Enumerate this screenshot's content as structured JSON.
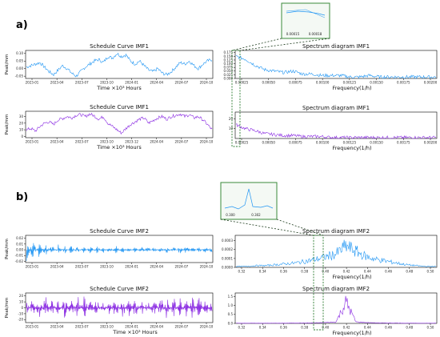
{
  "panels": [
    {
      "label": "a)",
      "inset_ticks": [
        "0.00015",
        "0.00018"
      ],
      "charts": [
        {
          "id": "a1",
          "type": "line",
          "title": "Schedule Curve  IMF1",
          "ylabel": "Peak/mm",
          "xlabel": "Time ×10³ Hours",
          "color": "#2196f3",
          "xticks": [
            "2023-01",
            "2023-04",
            "2023-07",
            "2023-10",
            "2024-01",
            "2024-04",
            "2024-07",
            "2024-10"
          ],
          "yticks": [
            {
              "v": 0.1,
              "t": "0.10"
            },
            {
              "v": 0.05,
              "t": "0.05"
            },
            {
              "v": 0.0,
              "t": "0.00"
            },
            {
              "v": -0.05,
              "t": "-0.05"
            }
          ],
          "ylim": [
            -0.065,
            0.12
          ]
        },
        {
          "id": "a2",
          "type": "line",
          "title": "Schedule Curve  IMF1",
          "ylabel": "Peak/mm",
          "xlabel": "Time ×10³ Hours",
          "color": "#8a2be2",
          "xticks": [
            "2023-01",
            "2023-04",
            "2023-07",
            "2023-10",
            "2023-12",
            "2024-04",
            "2024-07",
            "2024-10"
          ],
          "yticks": [
            {
              "v": 30,
              "t": "30"
            },
            {
              "v": 20,
              "t": "20"
            },
            {
              "v": 10,
              "t": "10"
            },
            {
              "v": 0,
              "t": "0"
            }
          ],
          "ylim": [
            -2,
            38
          ]
        },
        {
          "id": "a3",
          "type": "line",
          "title": "Spectrum diagram  IMF1",
          "ylabel": "",
          "xlabel": "Frequency(1/h)",
          "color": "#2196f3",
          "xticks": [
            "0.00025",
            "0.00050",
            "0.00075",
            "0.00100",
            "0.00125",
            "0.00150",
            "0.00175",
            "0.00200"
          ],
          "yticks": [
            {
              "v": 0.175,
              "t": "0.175"
            },
            {
              "v": 0.15,
              "t": "0.150"
            },
            {
              "v": 0.125,
              "t": "0.125"
            },
            {
              "v": 0.1,
              "t": "0.100"
            },
            {
              "v": 0.075,
              "t": "0.075"
            },
            {
              "v": 0.05,
              "t": "0.050"
            },
            {
              "v": 0.025,
              "t": "0.025"
            },
            {
              "v": 0.0,
              "t": "0.000"
            }
          ],
          "ylim": [
            0,
            0.19
          ]
        },
        {
          "id": "a4",
          "type": "line",
          "title": "Spectrum diagram  IMF1",
          "ylabel": "",
          "xlabel": "Frequency(1/h)",
          "color": "#8a2be2",
          "xticks": [
            "0.00025",
            "0.00050",
            "0.00075",
            "0.00100",
            "0.00125",
            "0.00150",
            "0.00175",
            "0.00200"
          ],
          "yticks": [
            {
              "v": 20,
              "t": "20"
            },
            {
              "v": 10,
              "t": "10"
            }
          ],
          "ylim": [
            0,
            27
          ]
        }
      ]
    },
    {
      "label": "b)",
      "inset_ticks": [
        "0.300",
        "0.302"
      ],
      "charts": [
        {
          "id": "b1",
          "type": "line",
          "title": "Schedule Curve  IMF2",
          "ylabel": "Peak/mm",
          "xlabel": "",
          "color": "#2196f3",
          "xticks": [
            "2023-01",
            "2023-04",
            "2023-07",
            "2023-10",
            "2024-01",
            "2024-04",
            "2024-07",
            "2024-10"
          ],
          "yticks": [
            {
              "v": 0.02,
              "t": "0.02"
            },
            {
              "v": 0.01,
              "t": "0.01"
            },
            {
              "v": 0.0,
              "t": "0.00"
            },
            {
              "v": -0.01,
              "t": "-0.01"
            },
            {
              "v": -0.02,
              "t": "-0.02"
            }
          ],
          "ylim": [
            -0.022,
            0.025
          ]
        },
        {
          "id": "b2",
          "type": "line",
          "title": "Schedule Curve  IMF2",
          "ylabel": "Peak/mm",
          "xlabel": "Time ×10³ Hours",
          "color": "#8a2be2",
          "xticks": [
            "2023-01",
            "2023-04",
            "2023-07",
            "2023-10",
            "2024-01",
            "2024-04",
            "2024-07",
            "2024-10"
          ],
          "yticks": [
            {
              "v": 20,
              "t": "20"
            },
            {
              "v": 10,
              "t": "10"
            },
            {
              "v": 0,
              "t": "0"
            },
            {
              "v": -10,
              "t": "-10"
            },
            {
              "v": -20,
              "t": "-20"
            }
          ],
          "ylim": [
            -25,
            25
          ]
        },
        {
          "id": "b3",
          "type": "line",
          "title": "Spectrum diagram  IMF2",
          "ylabel": "",
          "xlabel": "Frequency(1/h)",
          "color": "#2196f3",
          "xticks": [
            "0.32",
            "0.34",
            "0.36",
            "0.38",
            "0.40",
            "0.42",
            "0.44",
            "0.46",
            "0.48",
            "0.50"
          ],
          "yticks": [
            {
              "v": 0.0003,
              "t": "0.0003"
            },
            {
              "v": 0.0002,
              "t": "0.0002"
            },
            {
              "v": 0.0001,
              "t": "0.0001"
            },
            {
              "v": 0,
              "t": "0.0000"
            }
          ],
          "ylim": [
            0,
            0.00036
          ]
        },
        {
          "id": "b4",
          "type": "line",
          "title": "Spectrum diagram  IMF2",
          "ylabel": "",
          "xlabel": "Frequency(1/h)",
          "color": "#8a2be2",
          "xticks": [
            "0.32",
            "0.34",
            "0.36",
            "0.38",
            "0.40",
            "0.42",
            "0.44",
            "0.46",
            "0.48",
            "0.50"
          ],
          "yticks": [
            {
              "v": 1.5,
              "t": "1.5"
            },
            {
              "v": 1.0,
              "t": "1.0"
            },
            {
              "v": 0.5,
              "t": "0.5"
            },
            {
              "v": 0.0,
              "t": "0.0"
            }
          ],
          "ylim": [
            0,
            1.7
          ]
        }
      ]
    }
  ],
  "chart_data": [
    {
      "type": "line",
      "title": "Schedule Curve  IMF1",
      "series": [
        {
          "values": [
            0.01,
            0.02,
            0.03,
            0.04,
            0.01,
            -0.02,
            -0.04,
            -0.01,
            0.02,
            0.0,
            -0.03,
            -0.05,
            -0.02,
            0.01,
            0.03,
            0.05,
            0.06,
            0.04,
            0.08,
            0.07,
            0.1,
            0.08,
            0.09,
            0.05,
            0.03,
            0.05,
            0.02,
            -0.01,
            -0.02,
            0.0,
            -0.03,
            -0.04,
            -0.02,
            0.01,
            0.04,
            0.03,
            0.05,
            0.02,
            0.0,
            0.03,
            0.05,
            0.06
          ]
        }
      ]
    },
    {
      "type": "line",
      "title": "Schedule Curve  IMF1",
      "series": [
        {
          "values": [
            10,
            12,
            8,
            15,
            20,
            22,
            18,
            25,
            27,
            30,
            28,
            32,
            33,
            30,
            34,
            31,
            26,
            30,
            20,
            15,
            10,
            5,
            12,
            18,
            22,
            26,
            28,
            20,
            24,
            28,
            30,
            26,
            30,
            32,
            34,
            30,
            33,
            28,
            30,
            25,
            18,
            10
          ]
        }
      ]
    },
    {
      "type": "line",
      "title": "Spectrum diagram  IMF1",
      "series": [
        {
          "values": [
            0.15,
            0.13,
            0.09,
            0.06,
            0.05,
            0.04,
            0.05,
            0.03,
            0.03,
            0.02,
            0.02,
            0.02,
            0.01,
            0.01,
            0.02,
            0.01,
            0.01,
            0.01,
            0.01,
            0.01,
            0.01,
            0.01
          ]
        }
      ]
    },
    {
      "type": "line",
      "title": "Spectrum diagram  IMF1",
      "series": [
        {
          "values": [
            14,
            10,
            8,
            5,
            4,
            3,
            3,
            2,
            2,
            2,
            1,
            1,
            1,
            1,
            1,
            1,
            1,
            1,
            1,
            1,
            1,
            1
          ]
        }
      ]
    },
    {
      "type": "line",
      "title": "Schedule Curve  IMF2",
      "series": [
        {
          "values": [
            0.02,
            -0.016,
            0.012,
            -0.01,
            0.008,
            -0.008,
            0.006,
            -0.006,
            0.005,
            -0.005,
            0.006,
            -0.006,
            0.005,
            -0.005,
            0.006,
            -0.006,
            0.004,
            -0.004,
            0.005,
            -0.005,
            0.004,
            -0.004,
            0.005,
            -0.005,
            0.006,
            -0.006,
            0.004,
            -0.004,
            0.005,
            -0.005
          ]
        }
      ]
    },
    {
      "type": "line",
      "title": "Schedule Curve  IMF2",
      "series": [
        {
          "values": [
            15,
            -15,
            18,
            -18,
            12,
            -12,
            16,
            -16,
            20,
            -20,
            14,
            -14,
            10,
            -10,
            18,
            -18,
            16,
            -16,
            12,
            -12,
            17,
            -17,
            19,
            -19,
            15,
            -15,
            18,
            -18,
            14,
            -14
          ]
        }
      ]
    },
    {
      "type": "line",
      "title": "Spectrum diagram  IMF2",
      "series": [
        {
          "values": [
            1e-05,
            1e-05,
            2e-05,
            2e-05,
            3e-05,
            4e-05,
            5e-05,
            7e-05,
            9e-05,
            0.00012,
            0.00015,
            0.00024,
            0.00018,
            0.00012,
            9e-05,
            7e-05,
            5e-05,
            3e-05,
            2e-05,
            1e-05,
            1e-05
          ]
        }
      ]
    },
    {
      "type": "line",
      "title": "Spectrum diagram  IMF2",
      "series": [
        {
          "values": [
            0.01,
            0.01,
            0.01,
            0.01,
            0.01,
            0.01,
            0.02,
            0.02,
            0.03,
            0.05,
            0.08,
            1.2,
            0.08,
            0.05,
            0.03,
            0.02,
            0.02,
            0.01,
            0.01,
            0.01,
            0.01
          ]
        }
      ]
    }
  ]
}
